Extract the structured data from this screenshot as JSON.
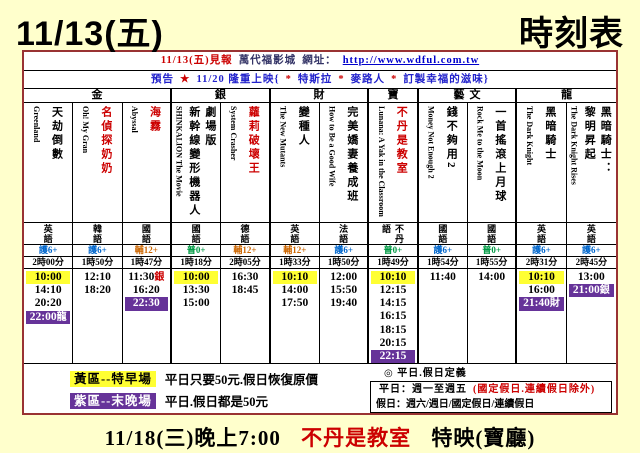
{
  "header": {
    "date": "11/13(五)",
    "title": "時刻表"
  },
  "info_bar": {
    "segments": [
      {
        "t": "11/13(五)見報",
        "c": "red",
        "name": "publish-date"
      },
      {
        "t": "萬代福影城",
        "c": "navy",
        "name": "cinema-name"
      },
      {
        "t": "網址：",
        "c": "navy",
        "name": "url-label"
      },
      {
        "t": "http://www.wdful.com.tw",
        "c": "link",
        "name": "cinema-url"
      }
    ]
  },
  "preview_bar": {
    "segments": [
      {
        "t": "預告",
        "c": "blue",
        "name": "preview-label"
      },
      {
        "t": "★",
        "c": "red",
        "name": "star-icon"
      },
      {
        "t": "11/20 隆重上映{",
        "c": "blue",
        "name": "preview-text"
      },
      {
        "t": "*",
        "c": "red",
        "name": "asterisk"
      },
      {
        "t": "特斯拉",
        "c": "blue",
        "name": "coming-movie"
      },
      {
        "t": "*",
        "c": "red",
        "name": "asterisk"
      },
      {
        "t": "麥路人",
        "c": "blue",
        "name": "coming-movie"
      },
      {
        "t": "*",
        "c": "red",
        "name": "asterisk"
      },
      {
        "t": "訂製幸福的滋味}",
        "c": "blue",
        "name": "coming-movie"
      }
    ]
  },
  "schedule": {
    "halls": [
      {
        "name": "金",
        "span": 3
      },
      {
        "name": "銀",
        "span": 2
      },
      {
        "name": "財",
        "span": 2
      },
      {
        "name": "寶",
        "span": 1
      },
      {
        "name": "藝文",
        "span": 2
      },
      {
        "name": "龍",
        "span": 2
      }
    ],
    "rating_colors": {
      "護6+": "#0066CC",
      "輔12+": "#CC6600",
      "普0+": "#009944"
    },
    "movies": [
      {
        "title_en": "Greenland",
        "title_zh": "天劫倒數",
        "red": false,
        "language": "英語",
        "rating": "護6+",
        "duration": "2時00分",
        "times": [
          {
            "t": "10:00",
            "hl": "yellow"
          },
          {
            "t": "14:10"
          },
          {
            "t": "20:20"
          },
          {
            "t": "22:00",
            "suffix": "龍",
            "hl": "purple"
          }
        ]
      },
      {
        "title_en": "Oh! My Gran",
        "title_zh": "名偵探奶奶",
        "red": true,
        "language": "韓語",
        "rating": "護6+",
        "duration": "1時50分",
        "times": [
          {
            "t": "12:10"
          },
          {
            "t": "18:20"
          }
        ]
      },
      {
        "title_en": "Abyssal",
        "title_zh": "海霧",
        "red": true,
        "language": "國語",
        "rating": "輔12+",
        "duration": "1時47分",
        "times": [
          {
            "t": "11:30",
            "suffix": "銀",
            "suffix_red": true
          },
          {
            "t": "16:20"
          },
          {
            "t": "22:30",
            "hl": "purple"
          }
        ]
      },
      {
        "title_en": "SHINKALION The Movie",
        "title_zh": "劇場版\n新幹線變形機器人",
        "red": false,
        "language": "國語",
        "rating": "普0+",
        "duration": "1時18分",
        "times": [
          {
            "t": "10:00",
            "hl": "yellow"
          },
          {
            "t": "13:30"
          },
          {
            "t": "15:00"
          }
        ]
      },
      {
        "title_en": "System Crasher",
        "title_zh": "蘿莉破壞王",
        "red": true,
        "language": "德語",
        "rating": "輔12+",
        "duration": "2時05分",
        "times": [
          {
            "t": "16:30"
          },
          {
            "t": "18:45"
          }
        ]
      },
      {
        "title_en": "The New Mutants",
        "title_zh": "變種人",
        "red": false,
        "language": "英語",
        "rating": "輔12+",
        "duration": "1時33分",
        "times": [
          {
            "t": "10:10",
            "hl": "yellow"
          },
          {
            "t": "14:00"
          },
          {
            "t": "17:50"
          }
        ]
      },
      {
        "title_en": "How to Be a Good Wife",
        "title_zh": "完美嬌妻養成班",
        "red": false,
        "language": "法語",
        "rating": "護6+",
        "duration": "1時50分",
        "times": [
          {
            "t": "12:00"
          },
          {
            "t": "15:50"
          },
          {
            "t": "19:40"
          }
        ]
      },
      {
        "title_en": "Lunana: A Yak in the Classroom",
        "title_zh": "不丹是教室",
        "red": true,
        "language": "不丹語",
        "rating": "普0+",
        "duration": "1時49分",
        "times": [
          {
            "t": "10:10",
            "hl": "yellow"
          },
          {
            "t": "12:15"
          },
          {
            "t": "14:15"
          },
          {
            "t": "16:15"
          },
          {
            "t": "18:15"
          },
          {
            "t": "20:15"
          },
          {
            "t": "22:15",
            "hl": "purple"
          }
        ]
      },
      {
        "title_en": "Money Not Enough 2",
        "title_zh": "錢不夠用2",
        "red": false,
        "language": "國語",
        "rating": "護6+",
        "duration": "1時54分",
        "times": [
          {
            "t": "11:40"
          }
        ]
      },
      {
        "title_en": "Rock Me to the Moon",
        "title_zh": "一首搖滾上月球",
        "red": false,
        "language": "國語",
        "rating": "普0+",
        "duration": "1時55分",
        "times": [
          {
            "t": "14:00"
          }
        ]
      },
      {
        "title_en": "The Dark Knight",
        "title_zh": "黑暗騎士",
        "red": false,
        "language": "英語",
        "rating": "護6+",
        "duration": "2時31分",
        "times": [
          {
            "t": "10:10",
            "hl": "yellow"
          },
          {
            "t": "16:00"
          },
          {
            "t": "21:40",
            "suffix": "財",
            "hl": "purple"
          }
        ]
      },
      {
        "title_en": "The Dark Knight Rises",
        "title_zh": "黑暗騎士：\n黎明昇起",
        "red": false,
        "language": "英語",
        "rating": "護6+",
        "duration": "2時45分",
        "times": [
          {
            "t": "13:00"
          },
          {
            "t": "21:00",
            "suffix": "銀",
            "hl": "purple"
          }
        ]
      }
    ]
  },
  "legend": {
    "yellow_chip": "黃區--特早場",
    "yellow_text": "平日只要50元.假日恢復原價",
    "purple_chip": "紫區--末晚場",
    "purple_text": "平日.假日都是50元",
    "define_title": "◎ 平日.假日定義",
    "weekday_segments": [
      {
        "t": "平日：週一至週五",
        "c": "black",
        "name": "weekday-rule"
      },
      {
        "t": "(國定假日.連續假日除外)",
        "c": "red",
        "name": "weekday-exception"
      }
    ],
    "holiday_text": "假日：週六/週日/國定假日/連續假日"
  },
  "footer": {
    "prefix": "11/18(三)晚上7:00",
    "highlight": "不丹是教室",
    "suffix": "特映(寶廳)"
  },
  "colors": {
    "page_bg": "#FFFFCC",
    "panel_border": "#993333",
    "highlight_yellow": "#FFFF33",
    "highlight_purple": "#663399",
    "title_red": "#CC0000",
    "link_blue": "#0000CC"
  }
}
